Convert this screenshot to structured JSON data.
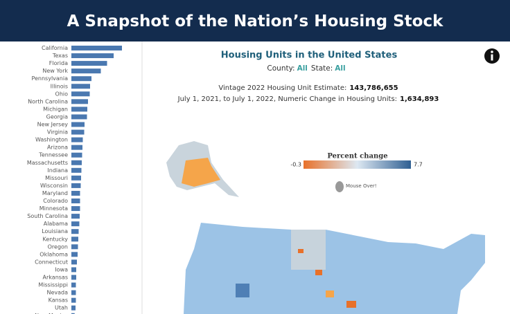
{
  "header": {
    "title": "A Snapshot of the Nation’s Housing Stock"
  },
  "chart_data": {
    "type": "bar",
    "orientation": "horizontal",
    "color": "#4a78b0",
    "categories": [
      "California",
      "Texas",
      "Florida",
      "New York",
      "Pennsylvania",
      "Illinois",
      "Ohio",
      "North Carolina",
      "Michigan",
      "Georgia",
      "New Jersey",
      "Virginia",
      "Washington",
      "Arizona",
      "Tennessee",
      "Massachusetts",
      "Indiana",
      "Missouri",
      "Wisconsin",
      "Maryland",
      "Colorado",
      "Minnesota",
      "South Carolina",
      "Alabama",
      "Louisiana",
      "Kentucky",
      "Oregon",
      "Oklahoma",
      "Connecticut",
      "Iowa",
      "Arkansas",
      "Mississippi",
      "Nevada",
      "Kansas",
      "Utah",
      "New Mexico"
    ],
    "values": [
      14.6,
      12.2,
      10.3,
      8.5,
      5.8,
      5.4,
      5.3,
      4.8,
      4.6,
      4.5,
      3.8,
      3.7,
      3.3,
      3.2,
      3.1,
      3.0,
      2.9,
      2.8,
      2.7,
      2.5,
      2.5,
      2.5,
      2.4,
      2.3,
      2.1,
      2.0,
      1.9,
      1.8,
      1.6,
      1.4,
      1.4,
      1.3,
      1.3,
      1.3,
      1.2,
      0.95
    ]
  },
  "map": {
    "title": "Housing Units in the United States",
    "filters": {
      "county_label": "County:",
      "county_value": "All",
      "state_label": "State:",
      "state_value": "All"
    },
    "estimate_label": "Vintage 2022 Housing Unit Estimate:",
    "estimate_value": "143,786,655",
    "change_label": "July 1, 2021, to July 1, 2022, Numeric Change in Housing Units:",
    "change_value": "1,634,893",
    "legend": {
      "title": "Percent change",
      "min": -0.3,
      "max": 7.7,
      "colors": [
        "#e8712a",
        "#dde8f2",
        "#2f5f92"
      ]
    },
    "hint": "Mouse Over!"
  }
}
